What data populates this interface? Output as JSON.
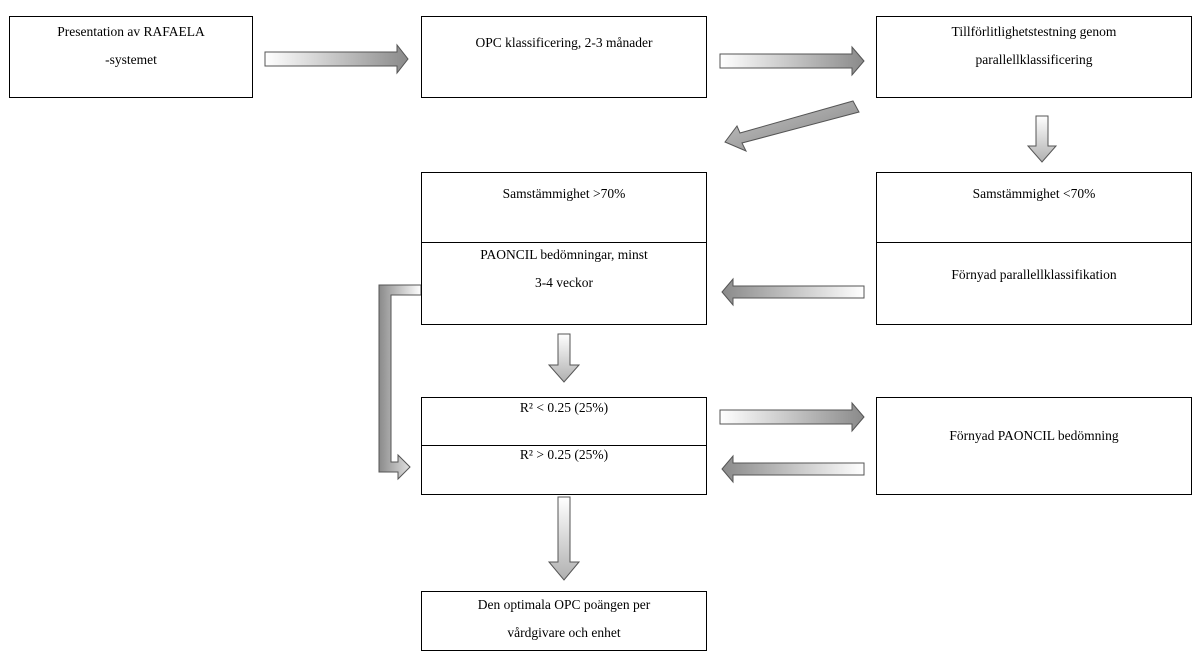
{
  "colors": {
    "box_border": "#000000",
    "arrow_stroke": "#555555",
    "arrow_gradient_light": "#ffffff",
    "arrow_gradient_dark": "#8a8a8a"
  },
  "nodes": {
    "presentation": "Presentation av RAFAELA\n-systemet",
    "opc_classification": "OPC klassificering, 2-3 månader",
    "reliability_test": "Tillförlitlighetstestning genom\nparallellklassificering",
    "agreement_high": "Samstämmighet  >70%",
    "paoncil_assessments": "PAONCIL bedömningar, minst\n3-4 veckor",
    "agreement_low": "Samstämmighet <70%",
    "renewed_parallel": "Förnyad parallellklassifikation",
    "r2_low": "R² < 0.25 (25%)",
    "r2_high": "R² > 0.25 (25%)",
    "renewed_paoncil": "Förnyad PAONCIL bedömning",
    "optimal_opc": "Den optimala OPC poängen per\nvårdgivare och enhet"
  }
}
